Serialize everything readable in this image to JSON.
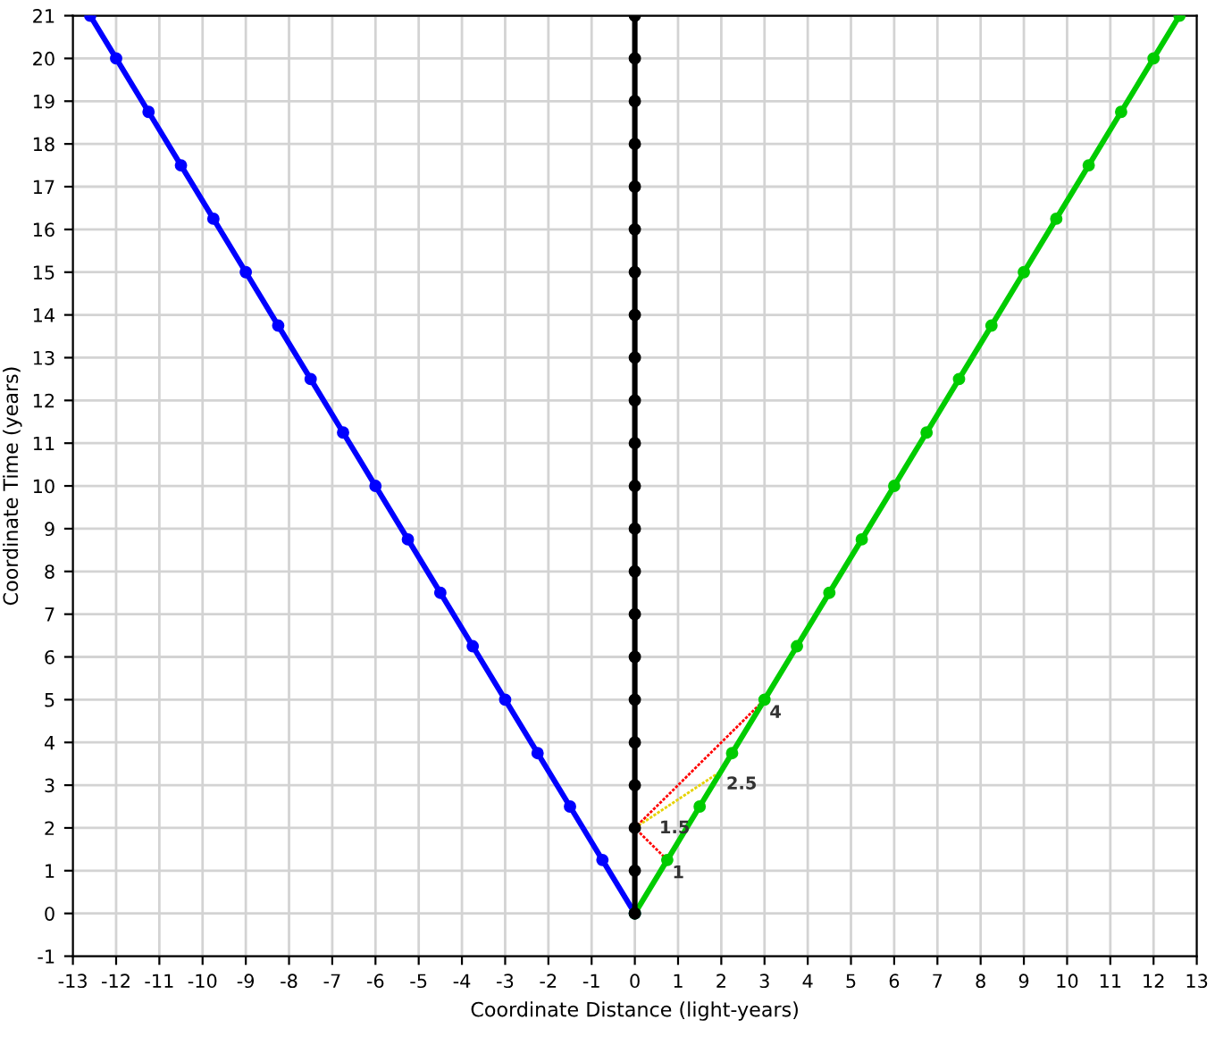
{
  "chart_data": {
    "type": "line",
    "xlabel": "Coordinate Distance (light-years)",
    "ylabel": "Coordinate Time (years)",
    "xlim": [
      -13,
      13
    ],
    "ylim": [
      -1,
      21
    ],
    "xticks": [
      -13,
      -12,
      -11,
      -10,
      -9,
      -8,
      -7,
      -6,
      -5,
      -4,
      -3,
      -2,
      -1,
      0,
      1,
      2,
      3,
      4,
      5,
      6,
      7,
      8,
      9,
      10,
      11,
      12,
      13
    ],
    "yticks": [
      -1,
      0,
      1,
      2,
      3,
      4,
      5,
      6,
      7,
      8,
      9,
      10,
      11,
      12,
      13,
      14,
      15,
      16,
      17,
      18,
      19,
      20,
      21
    ],
    "grid": true,
    "series": [
      {
        "color": "#0000ff",
        "marker": "circle",
        "line_style": "solid",
        "x": [
          0,
          -0.75,
          -1.5,
          -2.25,
          -3,
          -3.75,
          -4.5,
          -5.25,
          -6,
          -6.75,
          -7.5,
          -8.25,
          -9,
          -9.75,
          -10.5,
          -11.25,
          -12,
          -12.6
        ],
        "values": [
          0,
          1.25,
          2.5,
          3.75,
          5,
          6.25,
          7.5,
          8.75,
          10,
          11.25,
          12.5,
          13.75,
          15,
          16.25,
          17.5,
          18.75,
          20,
          21
        ]
      },
      {
        "color": "#00cc00",
        "marker": "circle",
        "line_style": "solid",
        "x": [
          0,
          0.75,
          1.5,
          2.25,
          3,
          3.75,
          4.5,
          5.25,
          6,
          6.75,
          7.5,
          8.25,
          9,
          9.75,
          10.5,
          11.25,
          12,
          12.6
        ],
        "values": [
          0,
          1.25,
          2.5,
          3.75,
          5,
          6.25,
          7.5,
          8.75,
          10,
          11.25,
          12.5,
          13.75,
          15,
          16.25,
          17.5,
          18.75,
          20,
          21
        ]
      },
      {
        "color": "#000000",
        "marker": "circle",
        "line_style": "solid",
        "x": [
          0,
          0,
          0,
          0,
          0,
          0,
          0,
          0,
          0,
          0,
          0,
          0,
          0,
          0,
          0,
          0,
          0,
          0,
          0,
          0,
          0,
          0
        ],
        "values": [
          0,
          1,
          2,
          3,
          4,
          5,
          6,
          7,
          8,
          9,
          10,
          11,
          12,
          13,
          14,
          15,
          16,
          17,
          18,
          19,
          20,
          21
        ]
      },
      {
        "color": "#ff0000",
        "marker": "none",
        "line_style": "dotted",
        "x": [
          0.75,
          0,
          3
        ],
        "values": [
          1.25,
          2,
          5
        ]
      },
      {
        "color": "#e6d200",
        "marker": "none",
        "line_style": "dotted",
        "x": [
          0,
          2
        ],
        "values": [
          2,
          3.33
        ]
      }
    ],
    "annotations": [
      {
        "text": "1",
        "x": 0.75,
        "y": 1.25
      },
      {
        "text": "1.5",
        "x": 0.45,
        "y": 2.3
      },
      {
        "text": "2.5",
        "x": 2,
        "y": 3.33
      },
      {
        "text": "4",
        "x": 3,
        "y": 5
      }
    ]
  }
}
